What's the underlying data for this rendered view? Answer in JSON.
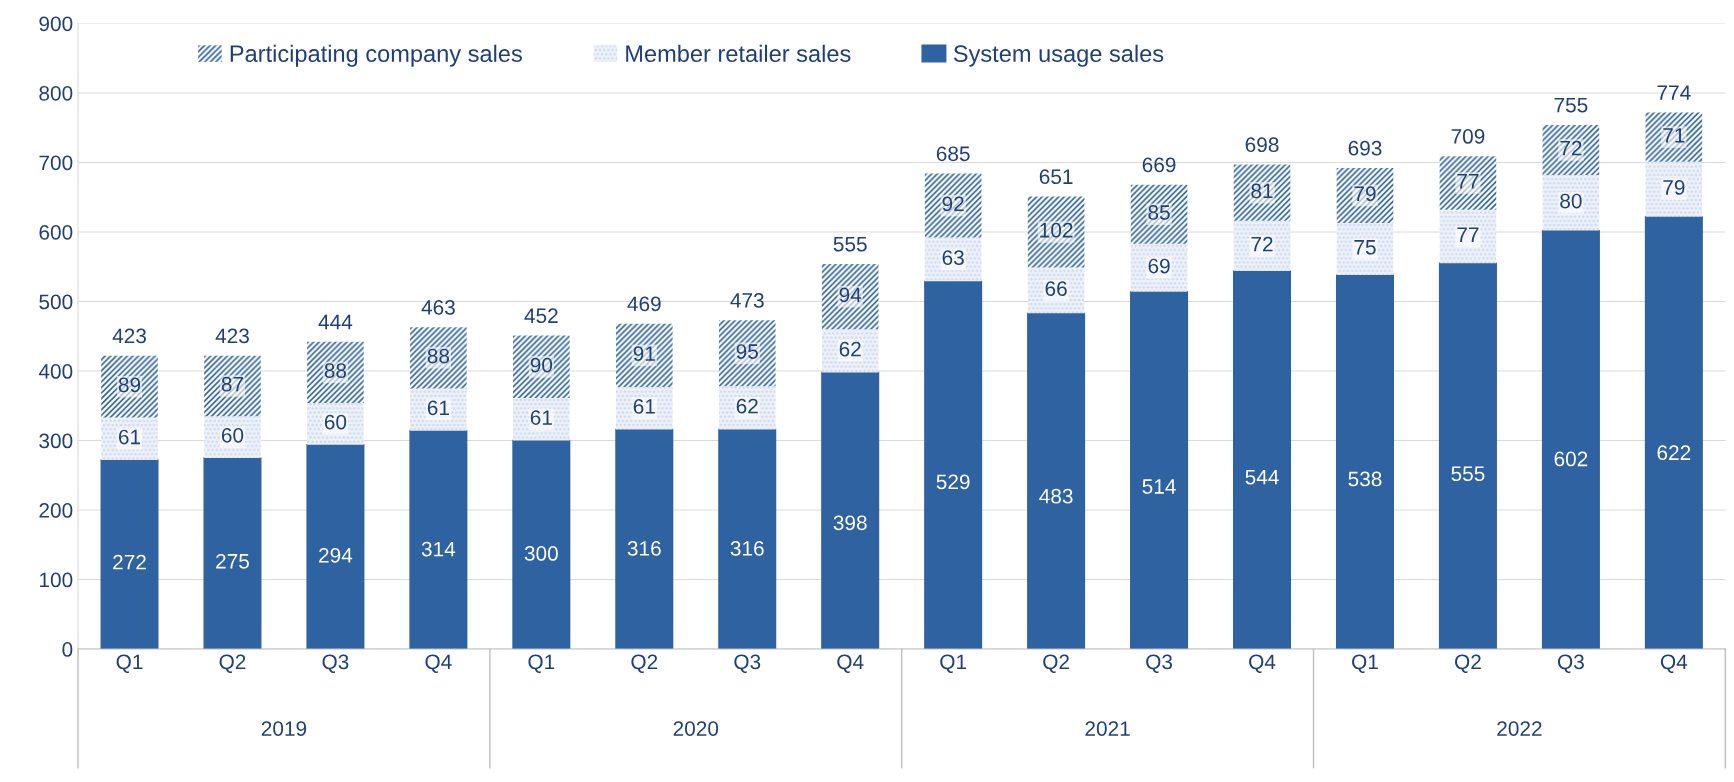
{
  "chart_data": {
    "type": "bar",
    "stacked": true,
    "data_labels": true,
    "categories": [
      "Q1",
      "Q2",
      "Q3",
      "Q4",
      "Q1",
      "Q2",
      "Q3",
      "Q4",
      "Q1",
      "Q2",
      "Q3",
      "Q4",
      "Q1",
      "Q2",
      "Q3",
      "Q4"
    ],
    "series": [
      {
        "name": "System usage sales",
        "color": "#2e62a0",
        "values": [
          272,
          275,
          294,
          314,
          300,
          316,
          316,
          398,
          529,
          483,
          514,
          544,
          538,
          555,
          602,
          622
        ]
      },
      {
        "name": "Member retailer sales",
        "color": "#c8d5eb",
        "values": [
          61,
          60,
          60,
          61,
          61,
          61,
          62,
          62,
          63,
          66,
          69,
          72,
          75,
          77,
          80,
          79
        ]
      },
      {
        "name": "Participating company sales",
        "color": "#2e62a0",
        "values": [
          89,
          87,
          88,
          88,
          90,
          91,
          95,
          94,
          92,
          102,
          85,
          81,
          79,
          77,
          72,
          71
        ]
      }
    ],
    "totals": [
      "423",
      "423",
      "444",
      "463",
      "452",
      "469",
      "473",
      "555",
      "685",
      "651",
      "669",
      "698",
      "693",
      "709",
      "755",
      "774"
    ],
    "annotations": [
      "2019",
      "2020",
      "2021",
      "2022"
    ],
    "ylim": [
      0,
      900
    ],
    "yticks": [
      0,
      100,
      200,
      300,
      400,
      500,
      600,
      700,
      800,
      900
    ],
    "grid": "y",
    "legend": "top left"
  }
}
